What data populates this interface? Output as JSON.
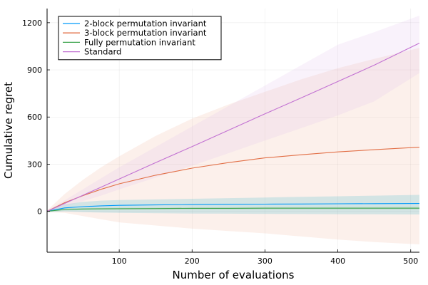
{
  "chart_data": {
    "type": "line",
    "title": "",
    "xlabel": "Number of evaluations",
    "ylabel": "Cumulative regret",
    "xlim": [
      1,
      512
    ],
    "ylim": [
      -260,
      1290
    ],
    "xticks": [
      100,
      200,
      300,
      400,
      500
    ],
    "yticks": [
      0,
      300,
      600,
      900,
      1200
    ],
    "x_tick_labels": [
      "100",
      "200",
      "300",
      "400",
      "500"
    ],
    "y_tick_labels": [
      "0",
      "300",
      "600",
      "900",
      "1200"
    ],
    "grid": true,
    "legend_position": "top-left",
    "x": [
      1,
      25,
      50,
      75,
      100,
      150,
      200,
      250,
      300,
      350,
      400,
      450,
      512
    ],
    "series": [
      {
        "name": "2-block permutation invariant",
        "color": "#009AFA",
        "band_color": "#00B4D8",
        "mean": [
          0,
          22,
          30,
          35,
          38,
          41,
          43,
          45,
          46,
          47,
          48,
          49,
          50
        ],
        "upper": [
          5,
          45,
          60,
          68,
          72,
          76,
          80,
          84,
          88,
          92,
          96,
          100,
          105
        ],
        "lower": [
          -5,
          0,
          -5,
          -8,
          -10,
          -12,
          -14,
          -15,
          -16,
          -17,
          -18,
          -19,
          -20
        ]
      },
      {
        "name": "3-block permutation invariant",
        "color": "#E26F46",
        "band_color": "#F0B49C",
        "mean": [
          0,
          55,
          100,
          140,
          175,
          230,
          275,
          310,
          340,
          360,
          378,
          392,
          408
        ],
        "upper": [
          5,
          110,
          200,
          280,
          350,
          480,
          590,
          680,
          760,
          840,
          910,
          970,
          1040
        ],
        "lower": [
          -5,
          -10,
          -30,
          -50,
          -70,
          -90,
          -110,
          -125,
          -140,
          -160,
          -180,
          -195,
          -210
        ]
      },
      {
        "name": "Fully permutation invariant",
        "color": "#3DA44D",
        "band_color": "#88C98F",
        "mean": [
          0,
          12,
          15,
          16,
          17,
          18,
          19,
          19,
          20,
          20,
          20,
          20,
          20
        ],
        "upper": [
          5,
          20,
          22,
          23,
          24,
          25,
          26,
          27,
          28,
          28,
          29,
          29,
          30
        ],
        "lower": [
          -5,
          5,
          8,
          9,
          10,
          11,
          12,
          12,
          12,
          12,
          12,
          12,
          12
        ]
      },
      {
        "name": "Standard",
        "color": "#C271D2",
        "band_color": "#E3BCEB",
        "mean": [
          0,
          50,
          102,
          154,
          206,
          310,
          412,
          516,
          620,
          722,
          826,
          930,
          1070
        ],
        "upper": [
          5,
          70,
          140,
          210,
          280,
          410,
          540,
          670,
          800,
          930,
          1060,
          1140,
          1245
        ],
        "lower": [
          -5,
          30,
          65,
          100,
          140,
          215,
          290,
          370,
          450,
          530,
          610,
          700,
          880
        ]
      }
    ]
  }
}
